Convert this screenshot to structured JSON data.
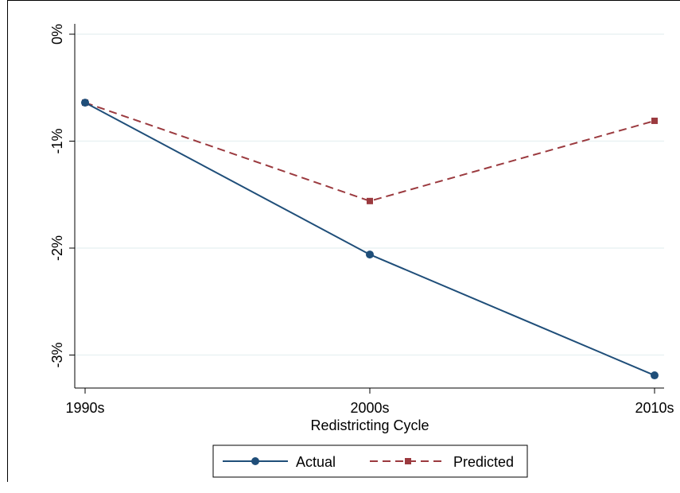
{
  "chart_data": {
    "type": "line",
    "title": "",
    "xlabel": "Redistricting Cycle",
    "ylabel": "",
    "categories": [
      "1990s",
      "2000s",
      "2010s"
    ],
    "ylim": [
      -3.2,
      0
    ],
    "yticks": [
      0,
      -1,
      -2,
      -3
    ],
    "ytick_labels": [
      "0%",
      "-1%",
      "-2%",
      "-3%"
    ],
    "grid": true,
    "legend_position": "bottom",
    "series": [
      {
        "name": "Actual",
        "values": [
          -0.64,
          -2.06,
          -3.19
        ],
        "color": "#1f4e79",
        "style": "solid",
        "marker": "circle"
      },
      {
        "name": "Predicted",
        "values": [
          -0.64,
          -1.56,
          -0.81
        ],
        "color": "#9b3a3f",
        "style": "dashed",
        "marker": "square"
      }
    ]
  }
}
